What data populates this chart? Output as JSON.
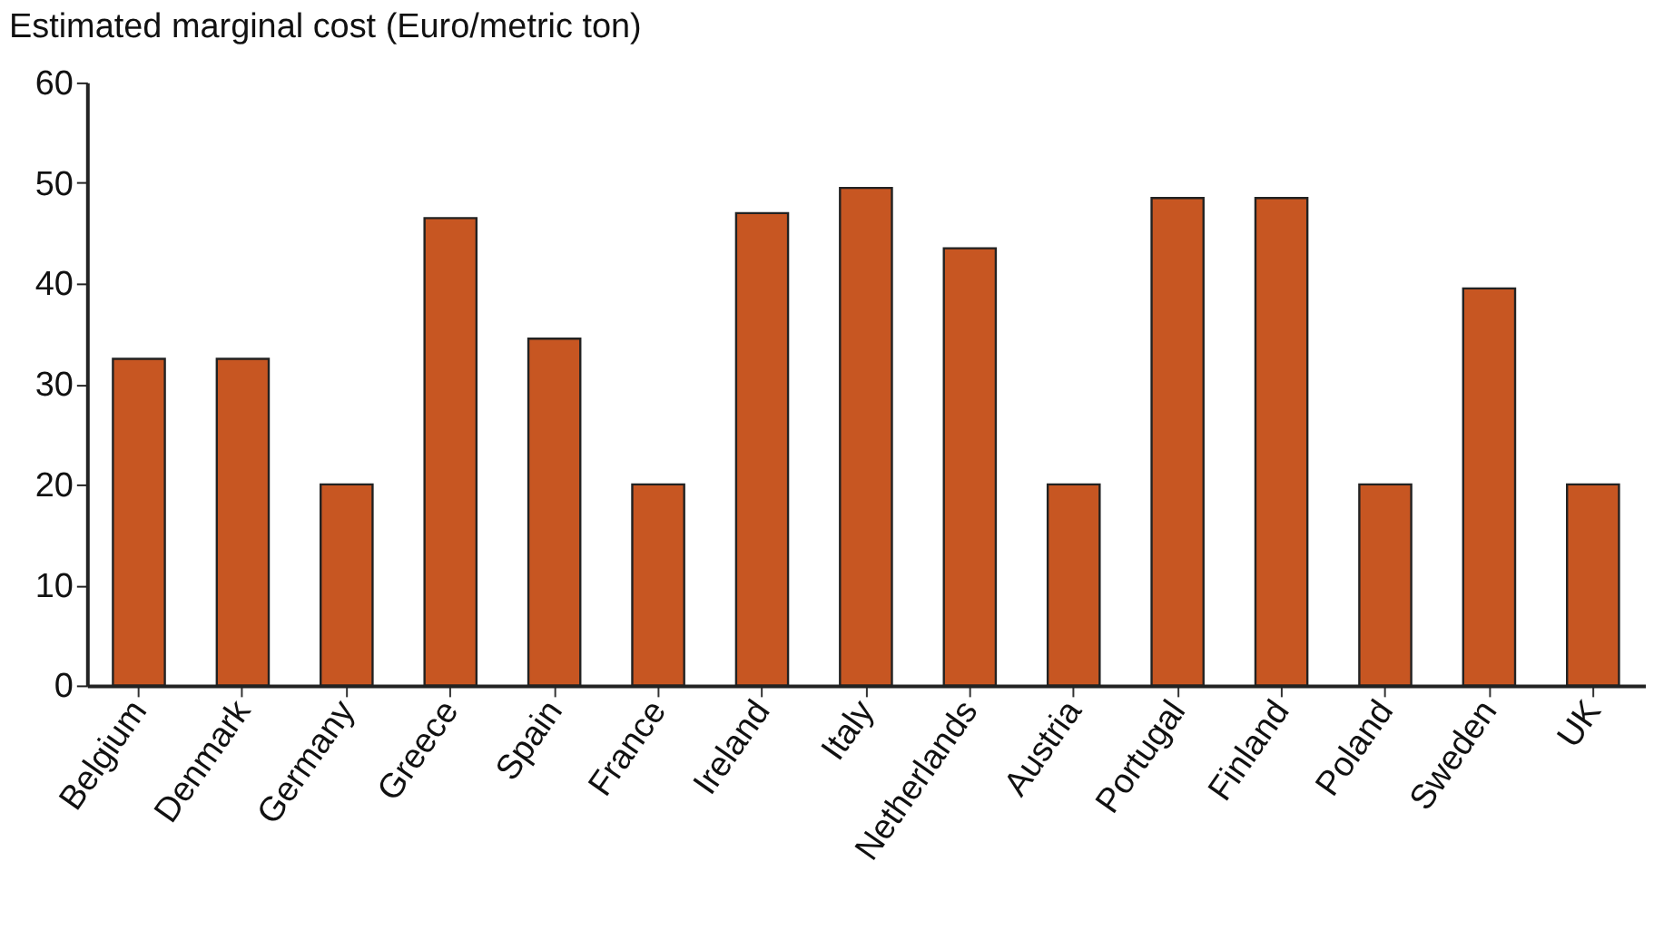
{
  "chart_data": {
    "type": "bar",
    "title": "Estimated marginal cost (Euro/metric ton)",
    "categories": [
      "Belgium",
      "Denmark",
      "Germany",
      "Greece",
      "Spain",
      "France",
      "Ireland",
      "Italy",
      "Netherlands",
      "Austria",
      "Portugal",
      "Finland",
      "Poland",
      "Sweden",
      "UK"
    ],
    "values": [
      32.5,
      32.5,
      20,
      46.5,
      34.5,
      20,
      47,
      49.5,
      43.5,
      20,
      48.5,
      48.5,
      20,
      39.5,
      20
    ],
    "color": "#c75622",
    "ylim": [
      0,
      60
    ],
    "yticks": [
      0,
      10,
      20,
      30,
      40,
      50,
      60
    ],
    "grid": false
  }
}
